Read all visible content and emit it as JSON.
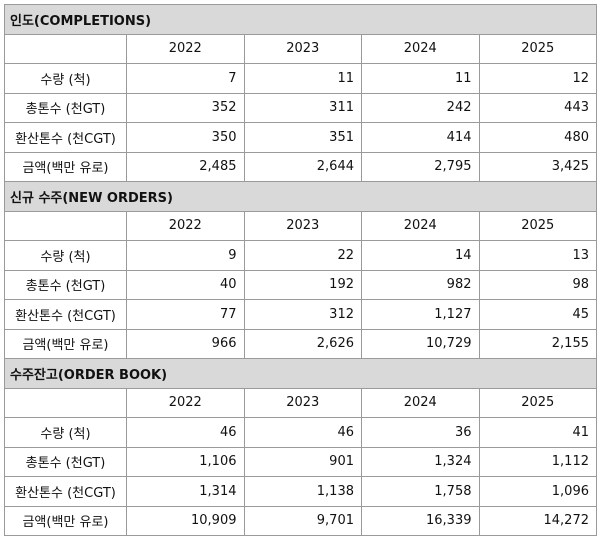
{
  "sections": [
    {
      "title": "인도(COMPLETIONS)",
      "years": [
        "2022",
        "2023",
        "2024",
        "2025"
      ],
      "rows": [
        {
          "label": "수량 (척)",
          "values": [
            "7",
            "11",
            "11",
            "12"
          ]
        },
        {
          "label": "총톤수 (천GT)",
          "values": [
            "352",
            "311",
            "242",
            "443"
          ]
        },
        {
          "label": "환산톤수 (천CGT)",
          "values": [
            "350",
            "351",
            "414",
            "480"
          ]
        },
        {
          "label": "금액(백만 유로)",
          "values": [
            "2,485",
            "2,644",
            "2,795",
            "3,425"
          ]
        }
      ]
    },
    {
      "title": "신규 수주(NEW ORDERS)",
      "years": [
        "2022",
        "2023",
        "2024",
        "2025"
      ],
      "rows": [
        {
          "label": "수량 (척)",
          "values": [
            "9",
            "22",
            "14",
            "13"
          ]
        },
        {
          "label": "총톤수 (천GT)",
          "values": [
            "40",
            "192",
            "982",
            "98"
          ]
        },
        {
          "label": "환산톤수 (천CGT)",
          "values": [
            "77",
            "312",
            "1,127",
            "45"
          ]
        },
        {
          "label": "금액(백만 유로)",
          "values": [
            "966",
            "2,626",
            "10,729",
            "2,155"
          ]
        }
      ]
    },
    {
      "title": "수주잔고(ORDER BOOK)",
      "years": [
        "2022",
        "2023",
        "2024",
        "2025"
      ],
      "rows": [
        {
          "label": "수량 (척)",
          "values": [
            "46",
            "46",
            "36",
            "41"
          ]
        },
        {
          "label": "총톤수 (천GT)",
          "values": [
            "1,106",
            "901",
            "1,324",
            "1,112"
          ]
        },
        {
          "label": "환산톤수 (천CGT)",
          "values": [
            "1,314",
            "1,138",
            "1,758",
            "1,096"
          ]
        },
        {
          "label": "금액(백만 유로)",
          "values": [
            "10,909",
            "9,701",
            "16,339",
            "14,272"
          ]
        }
      ]
    }
  ]
}
